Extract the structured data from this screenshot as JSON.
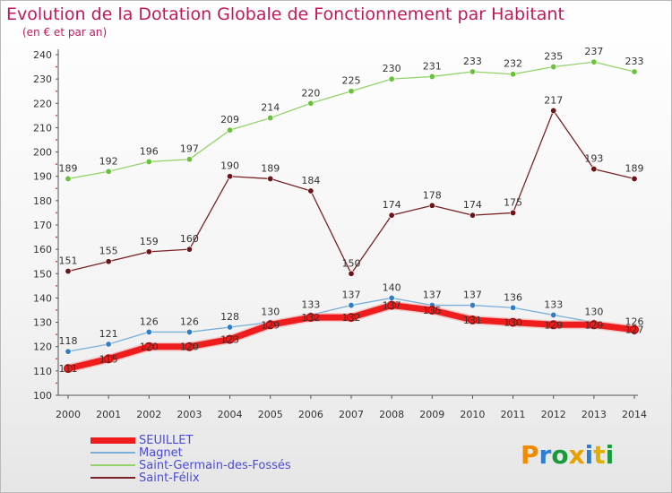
{
  "header": {
    "title": "Evolution de la Dotation Globale de Fonctionnement par Habitant",
    "subtitle": "(en € et par an)"
  },
  "logo": {
    "text": "Proxiti",
    "letters": [
      "P",
      "r",
      "o",
      "x",
      "i",
      "t",
      "i"
    ],
    "colors": [
      "#f08a00",
      "#2a7fd4",
      "#1a9a3a",
      "#e8a000",
      "#2a7fd4",
      "#e0b000",
      "#1a9a3a"
    ]
  },
  "chart_data": {
    "type": "line",
    "x": [
      2000,
      2001,
      2002,
      2003,
      2004,
      2005,
      2006,
      2007,
      2008,
      2009,
      2010,
      2011,
      2012,
      2013,
      2014
    ],
    "ylim": [
      100,
      240
    ],
    "yticks": [
      100,
      110,
      120,
      130,
      140,
      150,
      160,
      170,
      180,
      190,
      200,
      210,
      220,
      230,
      240
    ],
    "grid": "none",
    "legend_position": "bottom-left",
    "series": [
      {
        "name": "SEUILLET",
        "color": "#ee1c1c",
        "marker": "#ee1c1c",
        "width": 7,
        "values": [
          111,
          115,
          120,
          120,
          123,
          129,
          132,
          132,
          137,
          135,
          131,
          130,
          129,
          129,
          127
        ]
      },
      {
        "name": "Magnet",
        "color": "#7ab0d8",
        "marker": "#2f7dc4",
        "width": 1.3,
        "values": [
          118,
          121,
          126,
          126,
          128,
          130,
          133,
          137,
          140,
          137,
          137,
          136,
          133,
          130,
          126
        ]
      },
      {
        "name": "Saint-Germain-des-Fossés",
        "color": "#94d36c",
        "marker": "#6ac13a",
        "width": 1.3,
        "values": [
          189,
          192,
          196,
          197,
          209,
          214,
          220,
          225,
          230,
          231,
          233,
          232,
          235,
          237,
          233
        ]
      },
      {
        "name": "Saint-Félix",
        "color": "#7a2226",
        "marker": "#6b1518",
        "width": 1.3,
        "values": [
          151,
          155,
          159,
          160,
          190,
          189,
          184,
          150,
          174,
          178,
          174,
          175,
          217,
          193,
          189
        ]
      }
    ]
  }
}
